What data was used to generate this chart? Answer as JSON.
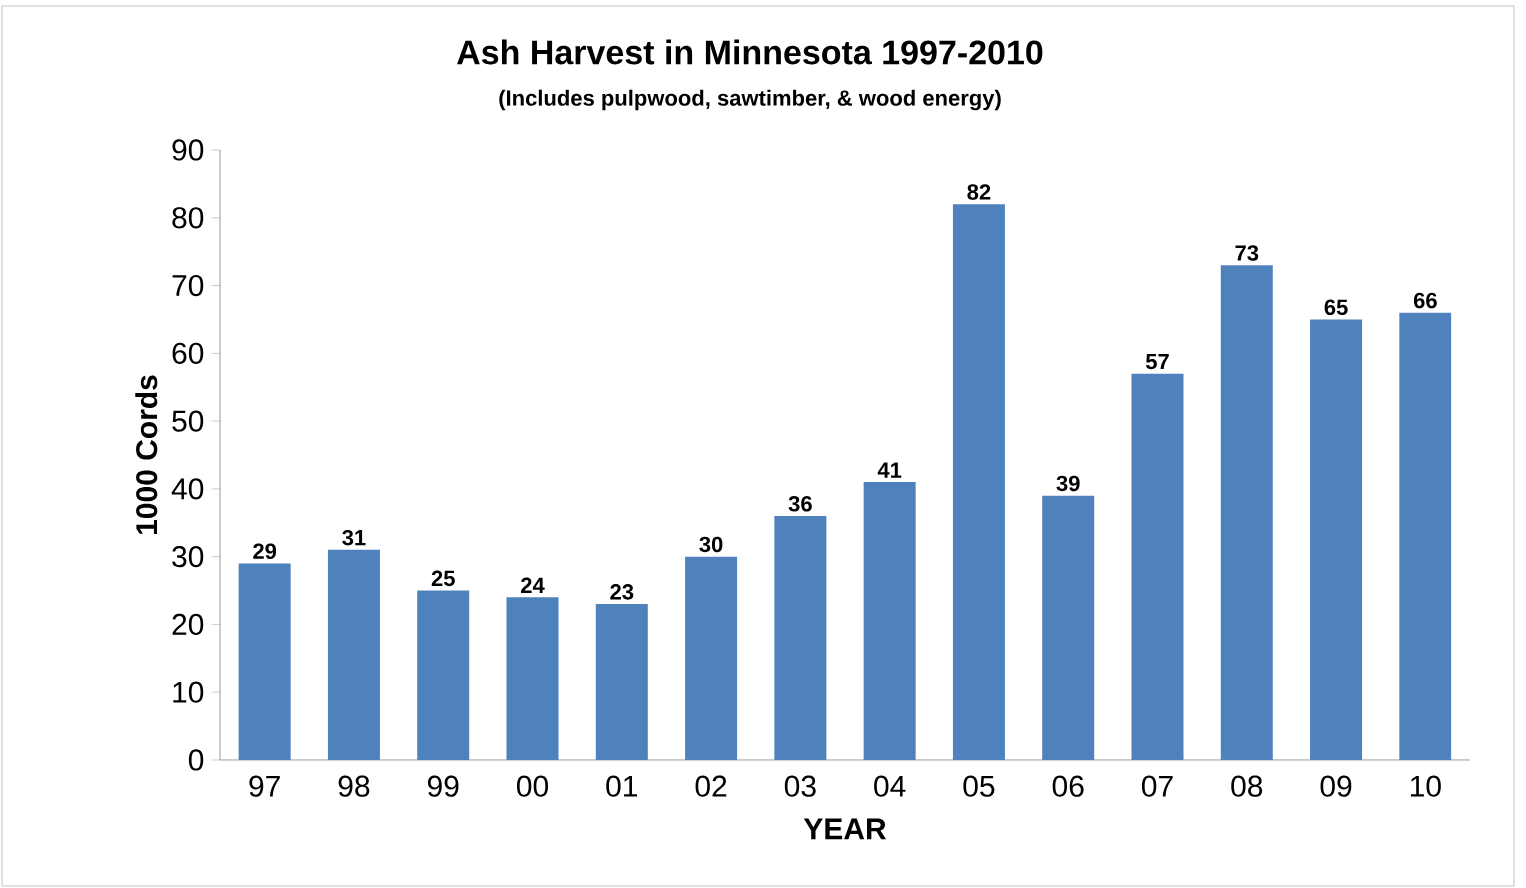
{
  "chart_data": {
    "type": "bar",
    "title": "Ash Harvest in Minnesota 1997-2010",
    "subtitle": "(Includes pulpwood, sawtimber, & wood energy)",
    "xlabel": "YEAR",
    "ylabel": "1000 Cords",
    "categories": [
      "97",
      "98",
      "99",
      "00",
      "01",
      "02",
      "03",
      "04",
      "05",
      "06",
      "07",
      "08",
      "09",
      "10"
    ],
    "values": [
      29,
      31,
      25,
      24,
      23,
      30,
      36,
      41,
      82,
      39,
      57,
      73,
      65,
      66
    ],
    "color": "#4f81bd",
    "ylim": [
      0,
      90
    ],
    "yticks": [
      0,
      10,
      20,
      30,
      40,
      50,
      60,
      70,
      80,
      90
    ],
    "data_labels": true
  }
}
